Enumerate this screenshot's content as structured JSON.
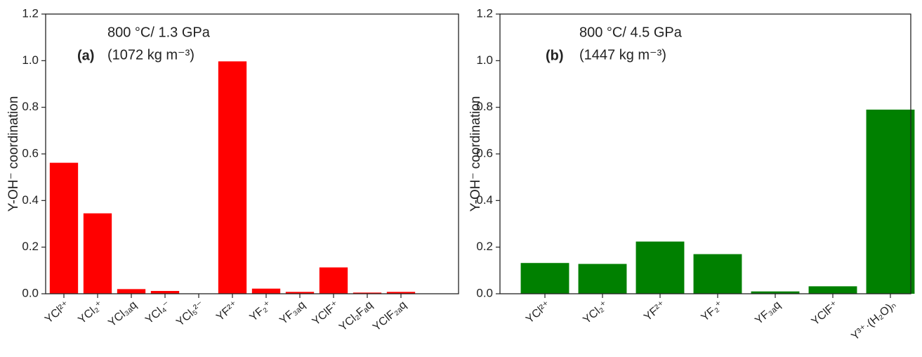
{
  "chart_data": [
    {
      "type": "bar",
      "panel_label": "(a)",
      "condition": "800 °C/ 1.3 GPa",
      "density": "(1072 kg m⁻³)",
      "ylabel": "Y-OH⁻ coordination",
      "color": "#ff0000",
      "categories": [
        "YCl²⁺",
        "YCl₂⁺",
        "YCl₃ₐq",
        "YCl₄⁻",
        "YCl₅²⁻",
        "YF²⁺",
        "YF₂⁺",
        "YF₃ₐq",
        "YClF⁺",
        "YCl₂Fₐq",
        "YClF₂ₐq"
      ],
      "values": [
        0.562,
        0.345,
        0.02,
        0.012,
        0,
        0.997,
        0.022,
        0.008,
        0.113,
        0.005,
        0.008
      ],
      "ylim": [
        0,
        1.2
      ],
      "yticks": [
        {
          "value": 0,
          "label": "0.0"
        },
        0.2,
        0.4,
        0.6,
        0.8,
        {
          "value": 1,
          "label": "1.0"
        },
        1.2
      ]
    },
    {
      "type": "bar",
      "panel_label": "(b)",
      "condition": "800 °C/ 4.5 GPa",
      "density": "(1447 kg m⁻³)",
      "ylabel": "Y-OH⁻ coordination",
      "color": "#008000",
      "categories": [
        "YCl²⁺",
        "YCl₂⁺",
        "YF²⁺",
        "YF₂⁺",
        "YF₃ₐq",
        "YClF⁺",
        "Y³⁺·(H₂O)ₙ"
      ],
      "values": [
        0.132,
        0.128,
        0.224,
        0.17,
        0.01,
        0.032,
        0.79
      ],
      "ylim": [
        0,
        1.2
      ],
      "yticks": [
        {
          "value": 0,
          "label": "0.0"
        },
        0.2,
        0.4,
        0.6,
        0.8,
        {
          "value": 1,
          "label": "1.0"
        },
        1.2
      ]
    }
  ]
}
